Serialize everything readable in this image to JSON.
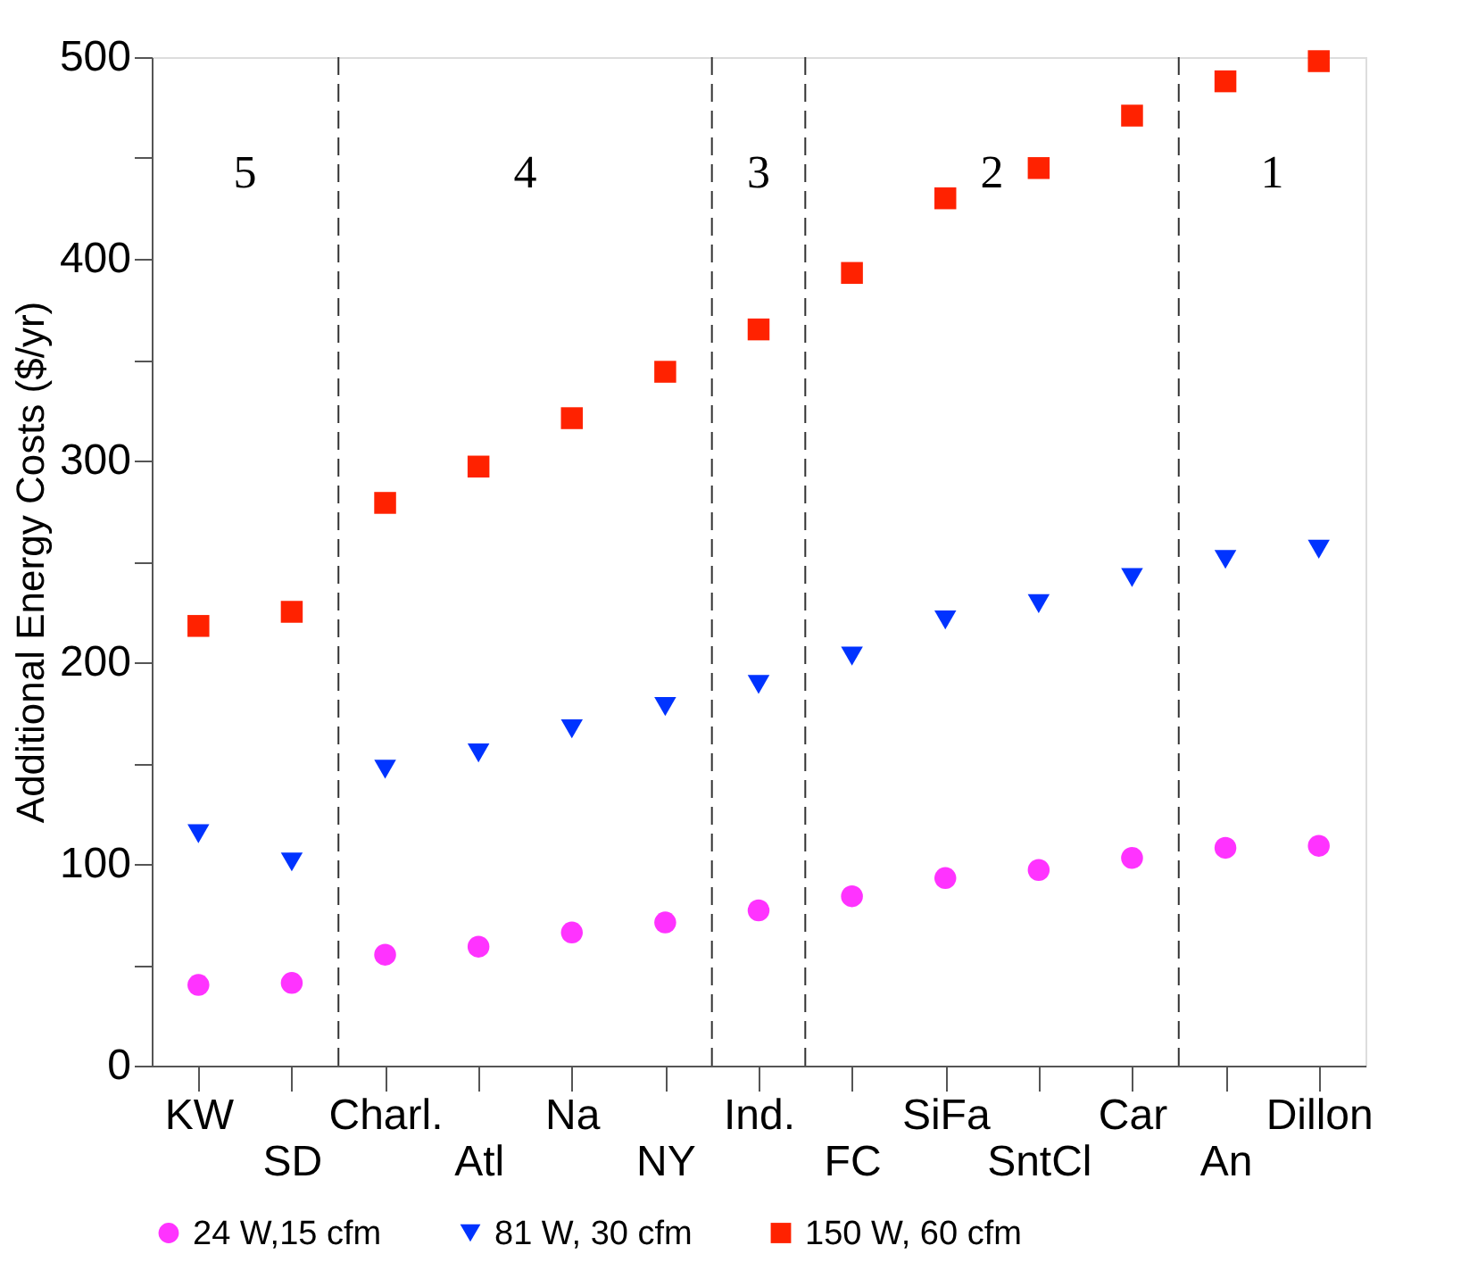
{
  "chart_data": {
    "type": "scatter",
    "ylabel": "Additional Energy Costs ($/yr)",
    "categories": [
      "KW",
      "SD",
      "Charl.",
      "Atl",
      "Na",
      "NY",
      "Ind.",
      "FC",
      "SiFa",
      "SntCl",
      "Car",
      "An",
      "Dillon"
    ],
    "series": [
      {
        "name": "24 W,15 cfm",
        "color": "#ff33ff",
        "marker": "circle",
        "values": [
          40,
          41,
          55,
          59,
          66,
          71,
          77,
          84,
          93,
          97,
          103,
          108,
          109
        ]
      },
      {
        "name": "81 W, 30 cfm",
        "color": "#0033ff",
        "marker": "triangle",
        "values": [
          115,
          101,
          147,
          155,
          167,
          178,
          189,
          203,
          221,
          229,
          242,
          251,
          256
        ]
      },
      {
        "name": "150 W, 60 cfm",
        "color": "#ff2200",
        "marker": "square",
        "values": [
          218,
          225,
          279,
          297,
          321,
          344,
          365,
          393,
          430,
          445,
          471,
          488,
          498
        ]
      }
    ],
    "ylim": [
      0,
      500
    ],
    "yticks": [
      0,
      {
        "value": 50,
        "label": null
      },
      100,
      {
        "value": 150,
        "label": null
      },
      200,
      {
        "value": 250,
        "label": null
      },
      300,
      {
        "value": 350,
        "label": null
      },
      400,
      {
        "value": 450,
        "label": null
      },
      500
    ],
    "annotations": [
      "5",
      "4",
      "3",
      "2",
      "1"
    ],
    "grid": false,
    "legend": "bottom"
  }
}
